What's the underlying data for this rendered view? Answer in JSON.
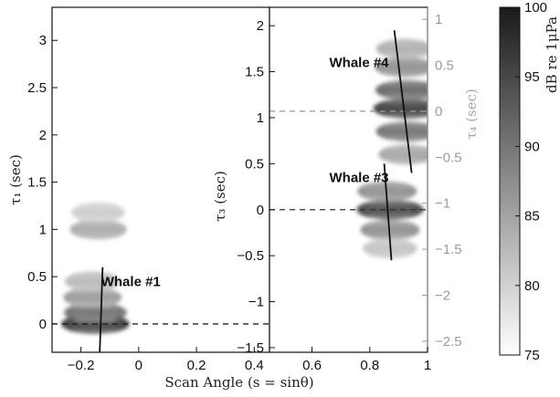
{
  "chart_data": {
    "type": "heatmap",
    "xlabel": "Scan Angle (s = sinθ)",
    "x_ticks": [
      "−0.2",
      "0",
      "0.2",
      "0.4",
      "0.6",
      "0.8",
      "1"
    ],
    "x_tick_values": [
      -0.2,
      0,
      0.2,
      0.4,
      0.6,
      0.8,
      1
    ],
    "xlim": [
      -0.3,
      1.0
    ],
    "panels": [
      {
        "xlim": [
          -0.3,
          0.45
        ],
        "ylabel": "τ₁ (sec)",
        "ylim": [
          -0.3,
          3.35
        ],
        "y_ticks": [
          "0",
          "0.5",
          "1",
          "1.5",
          "2",
          "2.5",
          "3"
        ],
        "y_tick_values": [
          0,
          0.5,
          1,
          1.5,
          2,
          2.5,
          3
        ],
        "annotations": [
          {
            "text": "Whale #1",
            "x": -0.13,
            "y": 0.4
          }
        ],
        "reference_line": {
          "y": 0,
          "style": "dashed"
        },
        "blobs": [
          {
            "s": -0.15,
            "tau": 0.0,
            "intensity": 0.95
          },
          {
            "s": -0.15,
            "tau": 0.12,
            "intensity": 0.7
          },
          {
            "s": -0.16,
            "tau": 0.28,
            "intensity": 0.5
          },
          {
            "s": -0.16,
            "tau": 0.45,
            "intensity": 0.35
          },
          {
            "s": -0.14,
            "tau": 1.0,
            "intensity": 0.42
          },
          {
            "s": -0.14,
            "tau": 1.18,
            "intensity": 0.25
          }
        ],
        "track": [
          {
            "s": -0.135,
            "tau": -0.3
          },
          {
            "s": -0.125,
            "tau": 0.6
          }
        ]
      },
      {
        "xlim": [
          0.45,
          1.0
        ],
        "ylabel": "τ₃ (sec)",
        "ylim": [
          -1.55,
          2.2
        ],
        "y_ticks": [
          "−1.5",
          "−1",
          "−0.5",
          "0",
          "0.5",
          "1",
          "1.5",
          "2"
        ],
        "y_tick_values": [
          -1.5,
          -1,
          -0.5,
          0,
          0.5,
          1,
          1.5,
          2
        ],
        "right_ylabel": "τ₄ (sec)",
        "right_ylim": [
          -2.62,
          1.13
        ],
        "right_y_ticks": [
          "−2.5",
          "−2",
          "−1.5",
          "−1",
          "−0.5",
          "0",
          "0.5",
          "1"
        ],
        "right_y_tick_values": [
          -2.5,
          -2,
          -1.5,
          -1,
          -0.5,
          0,
          0.5,
          1
        ],
        "annotations": [
          {
            "text": "Whale #4",
            "x": 0.66,
            "y": 1.55
          },
          {
            "text": "Whale #3",
            "x": 0.66,
            "y": 0.3
          }
        ],
        "reference_lines": [
          {
            "y": 1.07,
            "style": "dashed",
            "color": "#999999"
          },
          {
            "y": 0.0,
            "style": "dashed",
            "color": "#333333"
          }
        ],
        "blobs": [
          {
            "s": 0.93,
            "tau": 1.1,
            "intensity": 0.95
          },
          {
            "s": 0.93,
            "tau": 1.3,
            "intensity": 0.75
          },
          {
            "s": 0.92,
            "tau": 1.55,
            "intensity": 0.55
          },
          {
            "s": 0.92,
            "tau": 1.75,
            "intensity": 0.4
          },
          {
            "s": 0.93,
            "tau": 0.85,
            "intensity": 0.7
          },
          {
            "s": 0.93,
            "tau": 0.6,
            "intensity": 0.45
          },
          {
            "s": 0.87,
            "tau": 0.0,
            "intensity": 0.9
          },
          {
            "s": 0.86,
            "tau": 0.2,
            "intensity": 0.55
          },
          {
            "s": 0.87,
            "tau": -0.22,
            "intensity": 0.55
          },
          {
            "s": 0.87,
            "tau": -0.42,
            "intensity": 0.3
          }
        ],
        "tracks": [
          [
            {
              "s": 0.885,
              "tau": 1.95
            },
            {
              "s": 0.945,
              "tau": 0.4
            }
          ],
          [
            {
              "s": 0.85,
              "tau": 0.5
            },
            {
              "s": 0.875,
              "tau": -0.55
            }
          ]
        ]
      }
    ],
    "colorbar": {
      "label": "dB re 1μPa",
      "range": [
        75,
        100
      ],
      "ticks": [
        "75",
        "80",
        "85",
        "90",
        "95",
        "100"
      ],
      "tick_values": [
        75,
        80,
        85,
        90,
        95,
        100
      ],
      "colormap": [
        "#ffffff",
        "#1a1a1a"
      ]
    }
  }
}
